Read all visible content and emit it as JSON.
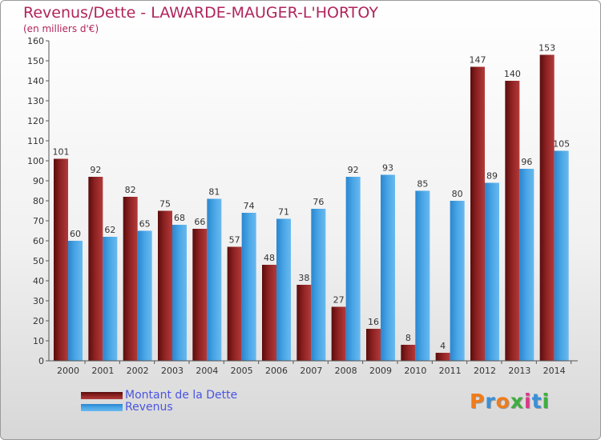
{
  "header": {
    "title": "Revenus/Dette - LAWARDE-MAUGER-L'HORTOY",
    "subtitle": "(en milliers d'€)"
  },
  "chart_data": {
    "type": "bar",
    "title": "Revenus/Dette - LAWARDE-MAUGER-L'HORTOY",
    "subtitle": "(en milliers d'€)",
    "categories": [
      "2000",
      "2001",
      "2002",
      "2003",
      "2004",
      "2005",
      "2006",
      "2007",
      "2008",
      "2009",
      "2010",
      "2011",
      "2012",
      "2013",
      "2014"
    ],
    "series": [
      {
        "name": "Montant de la Dette",
        "color": "#8b1a1a",
        "values": [
          101,
          92,
          82,
          75,
          66,
          57,
          48,
          38,
          27,
          16,
          8,
          4,
          147,
          140,
          153
        ]
      },
      {
        "name": "Revenus",
        "color": "#3f9de0",
        "values": [
          60,
          62,
          65,
          68,
          81,
          74,
          71,
          76,
          92,
          93,
          85,
          80,
          89,
          96,
          105
        ]
      }
    ],
    "ylim": [
      0,
      160
    ],
    "yticks": [
      0,
      10,
      20,
      30,
      40,
      50,
      60,
      70,
      80,
      90,
      100,
      110,
      120,
      130,
      140,
      150,
      160
    ],
    "grid": false,
    "legend_position": "bottom-left"
  },
  "legend": {
    "items": [
      {
        "label": "Montant de la Dette",
        "color": "#8b1a1a"
      },
      {
        "label": "Revenus",
        "color": "#3f9de0"
      }
    ]
  },
  "logo": {
    "letters": [
      "P",
      "r",
      "o",
      "x",
      "i",
      "t",
      "i"
    ],
    "colors": [
      "#f07c1a",
      "#3a8fd8",
      "#f07c1a",
      "#3fae3f",
      "#d83a8a",
      "#3a8fd8",
      "#3fae3f"
    ]
  }
}
